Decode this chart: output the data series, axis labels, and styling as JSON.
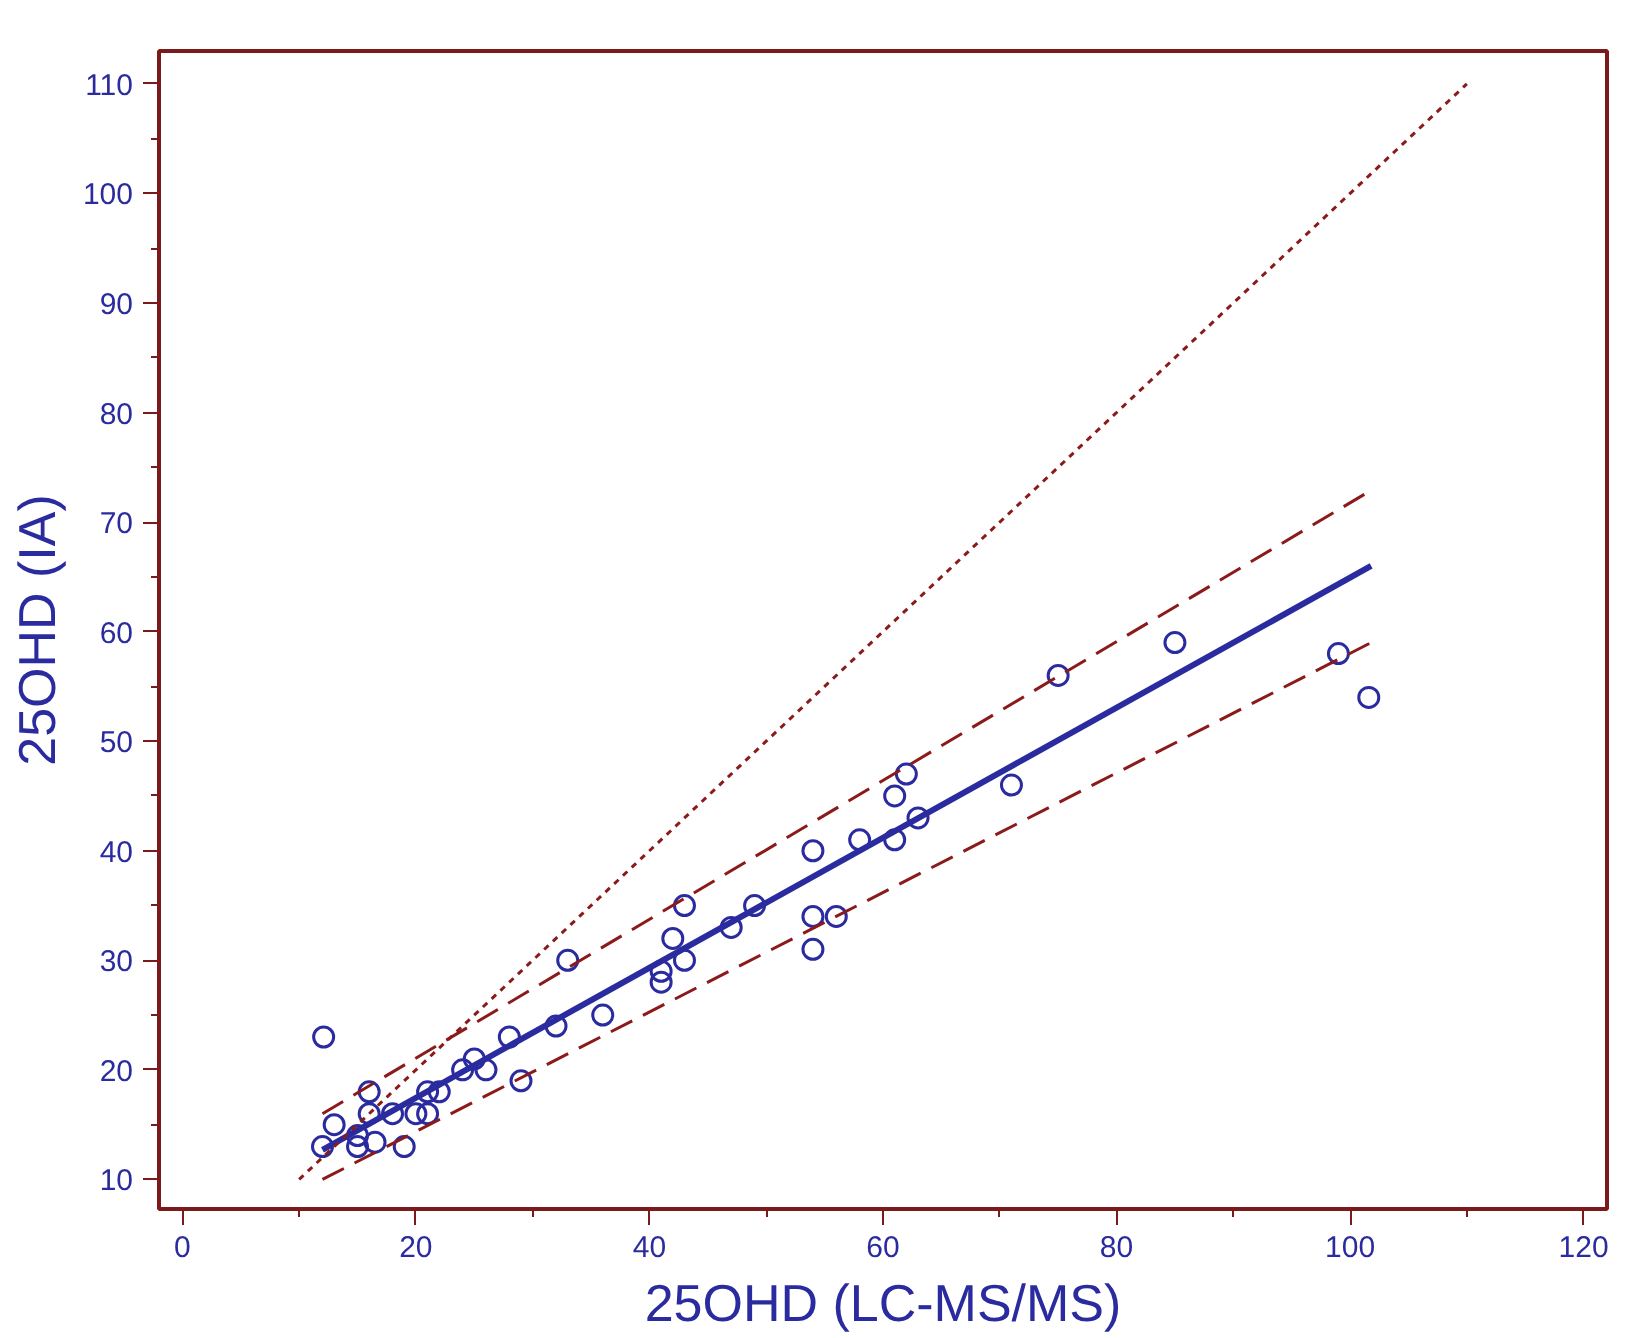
{
  "chart_data": {
    "type": "scatter",
    "xlabel": "25OHD (LC-MS/MS)",
    "ylabel": "25OHD (IA)",
    "xlim": [
      -2,
      122
    ],
    "ylim": [
      7.3,
      113
    ],
    "xticks": [
      0,
      20,
      40,
      60,
      80,
      100,
      120
    ],
    "yticks": [
      10,
      20,
      30,
      40,
      50,
      60,
      70,
      80,
      90,
      100,
      110
    ],
    "grid": false,
    "marker": "circle",
    "series": [
      {
        "color": "#2b2ba0",
        "x": [
          12.1,
          12,
          13,
          15,
          15,
          16,
          16,
          16.5,
          18,
          19,
          20,
          21,
          21,
          22,
          24,
          25,
          26,
          28,
          29,
          32,
          33,
          36,
          41,
          41,
          42,
          43,
          43,
          47,
          49,
          54,
          54,
          54,
          56,
          58,
          61,
          61,
          62,
          63,
          71,
          75,
          85,
          99,
          101.6
        ],
        "values": [
          23,
          13,
          15,
          14,
          13,
          18,
          16,
          13.4,
          16,
          13,
          16,
          16,
          18,
          18,
          20,
          21,
          20,
          23,
          19,
          24,
          30,
          25,
          29,
          28,
          32,
          30,
          35,
          33,
          35,
          40,
          34,
          31,
          34,
          41,
          41,
          45,
          47,
          43,
          46,
          56,
          59,
          58,
          54
        ]
      },
      {
        "type": "line",
        "line_style": "solid",
        "marker": "none",
        "color": "#2b2ba0",
        "x": [
          12,
          101.8
        ],
        "values": [
          12.7,
          66
        ]
      },
      {
        "type": "line",
        "line_style": "dashed",
        "marker": "none",
        "color": "#8b1a1a",
        "x": [
          12,
          101.8
        ],
        "values": [
          16,
          72.9
        ]
      },
      {
        "type": "line",
        "line_style": "dashed",
        "marker": "none",
        "color": "#8b1a1a",
        "x": [
          12,
          101.8
        ],
        "values": [
          10,
          59
        ]
      },
      {
        "type": "line",
        "line_style": "dotted",
        "marker": "none",
        "color": "#8b1a1a",
        "x": [
          10,
          110
        ],
        "values": [
          10,
          110
        ]
      }
    ]
  }
}
